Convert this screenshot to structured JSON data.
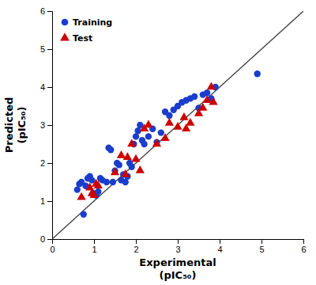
{
  "chart_data": {
    "type": "scatter",
    "xlabel": "Experimental\n(pIC₅₀)",
    "ylabel": "Predicted\n(pIC₅₀)",
    "xlim": [
      0,
      6
    ],
    "ylim": [
      0,
      6
    ],
    "xticks": [
      0,
      1,
      2,
      3,
      4,
      5,
      6
    ],
    "yticks": [
      0,
      1,
      2,
      3,
      4,
      5,
      6
    ],
    "legend": "upper left",
    "series": [
      {
        "name": "Training",
        "color": "#1a3dcc",
        "marker": "circle",
        "x": [
          0.6,
          0.65,
          0.7,
          0.75,
          0.8,
          0.85,
          0.9,
          0.95,
          1.0,
          1.05,
          1.1,
          1.15,
          1.2,
          1.3,
          1.35,
          1.4,
          1.45,
          1.5,
          1.55,
          1.6,
          1.65,
          1.7,
          1.75,
          1.8,
          1.85,
          1.9,
          1.95,
          2.0,
          2.05,
          2.1,
          2.15,
          2.2,
          2.3,
          2.4,
          2.5,
          2.6,
          2.7,
          2.8,
          2.9,
          3.0,
          3.1,
          3.2,
          3.3,
          3.4,
          3.5,
          3.6,
          3.7,
          3.8,
          3.9,
          4.9
        ],
        "values": [
          1.3,
          1.45,
          1.5,
          0.65,
          1.4,
          1.6,
          1.65,
          1.55,
          1.2,
          1.15,
          1.25,
          1.6,
          1.55,
          1.5,
          2.4,
          2.35,
          1.5,
          1.8,
          2.0,
          1.95,
          1.55,
          1.7,
          1.5,
          1.65,
          2.0,
          1.9,
          2.5,
          2.7,
          2.85,
          3.0,
          2.6,
          2.5,
          2.7,
          2.9,
          2.55,
          2.8,
          3.35,
          3.25,
          3.4,
          3.5,
          3.6,
          3.65,
          3.7,
          3.75,
          3.45,
          3.8,
          3.85,
          3.7,
          4.0,
          4.35
        ]
      },
      {
        "name": "Test",
        "color": "#cc0000",
        "marker": "triangle",
        "x": [
          0.7,
          0.9,
          0.95,
          1.0,
          1.05,
          1.1,
          1.5,
          1.65,
          1.75,
          1.8,
          1.9,
          2.0,
          2.1,
          2.2,
          2.3,
          2.5,
          2.7,
          2.8,
          3.0,
          3.15,
          3.2,
          3.3,
          3.5,
          3.6,
          3.7,
          3.8,
          3.85
        ],
        "values": [
          1.1,
          1.35,
          1.2,
          1.15,
          1.45,
          1.4,
          1.75,
          2.2,
          1.7,
          2.15,
          2.5,
          2.1,
          1.8,
          2.9,
          3.0,
          2.5,
          2.65,
          3.05,
          2.95,
          3.2,
          2.9,
          3.05,
          3.3,
          3.45,
          3.65,
          4.0,
          3.6
        ]
      },
      {
        "type": "line",
        "color": "#444444",
        "x": [
          0,
          6
        ],
        "values": [
          0,
          6
        ]
      }
    ]
  }
}
